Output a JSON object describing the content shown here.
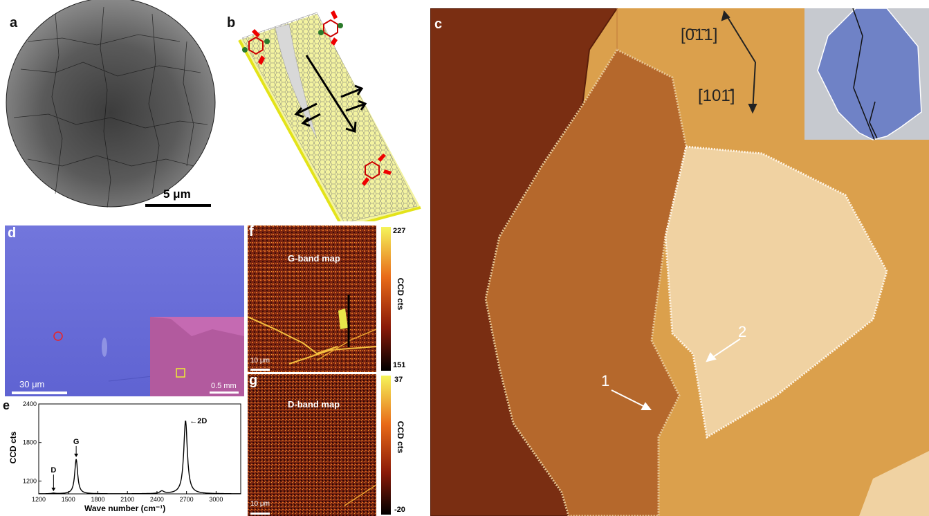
{
  "panel_a": {
    "label": "a",
    "scalebar": "5 μm"
  },
  "panel_b": {
    "label": "b"
  },
  "panel_c": {
    "label": "c",
    "dir1": "[0̄1̄1]",
    "dir2": "[101̄]",
    "marker1": "1",
    "marker2": "2"
  },
  "panel_d": {
    "label": "d",
    "scalebar": "30 μm",
    "inset_scalebar": "0.5 mm"
  },
  "panel_f": {
    "label": "f",
    "title": "G-band map",
    "cb_max": "227",
    "cb_min": "151",
    "cb_label": "CCD cts",
    "scalebar": "10 μm"
  },
  "panel_g": {
    "label": "g",
    "title": "D-band map",
    "cb_max": "37",
    "cb_min": "-20",
    "cb_label": "CCD cts",
    "scalebar": "10 μm"
  },
  "chart_data": {
    "type": "line",
    "label": "e",
    "xlabel": "Wave number (cm⁻¹)",
    "ylabel": "CCD cts",
    "xlim": [
      1200,
      3250
    ],
    "ylim": [
      1000,
      2400
    ],
    "xticks": [
      1200,
      1500,
      1800,
      2100,
      2400,
      2700,
      3000
    ],
    "yticks": [
      1200,
      1800,
      2400
    ],
    "peaks": [
      {
        "name": "D",
        "x": 1350,
        "y": 1010
      },
      {
        "name": "G",
        "x": 1580,
        "y": 1540
      },
      {
        "name": "2D",
        "x": 2690,
        "y": 2140
      }
    ],
    "minor_peak": {
      "x": 2450,
      "y": 1040
    },
    "baseline": 1000
  }
}
